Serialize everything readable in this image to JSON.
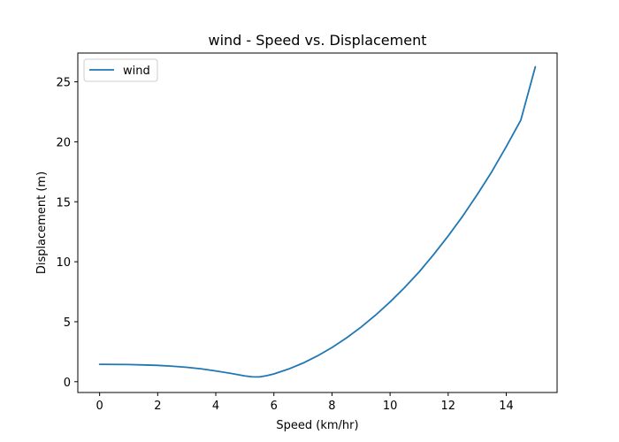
{
  "chart_data": {
    "type": "line",
    "title": "wind - Speed vs. Displacement",
    "xlabel": "Speed (km/hr)",
    "ylabel": "Displacement (m)",
    "xlim": [
      -0.75,
      15.75
    ],
    "ylim": [
      -0.9,
      27.4
    ],
    "xticks": [
      0,
      2,
      4,
      6,
      8,
      10,
      12,
      14
    ],
    "yticks": [
      0,
      5,
      10,
      15,
      20,
      25
    ],
    "grid": false,
    "legend": "top-left",
    "series": [
      {
        "name": "wind",
        "color": "#1f77b4",
        "x": [
          0,
          0.5,
          1,
          1.5,
          2,
          2.5,
          3,
          3.5,
          4,
          4.5,
          5,
          5.25,
          5.5,
          5.75,
          6,
          6.5,
          7,
          7.5,
          8,
          8.5,
          9,
          9.5,
          10,
          10.5,
          11,
          11.5,
          12,
          12.5,
          13,
          13.5,
          14,
          14.5,
          15
        ],
        "y": [
          1.45,
          1.44,
          1.43,
          1.4,
          1.36,
          1.29,
          1.2,
          1.07,
          0.9,
          0.7,
          0.48,
          0.41,
          0.4,
          0.5,
          0.65,
          1.05,
          1.55,
          2.15,
          2.85,
          3.65,
          4.55,
          5.55,
          6.65,
          7.85,
          9.15,
          10.6,
          12.15,
          13.8,
          15.6,
          17.5,
          19.6,
          21.8,
          26.25
        ]
      }
    ]
  }
}
